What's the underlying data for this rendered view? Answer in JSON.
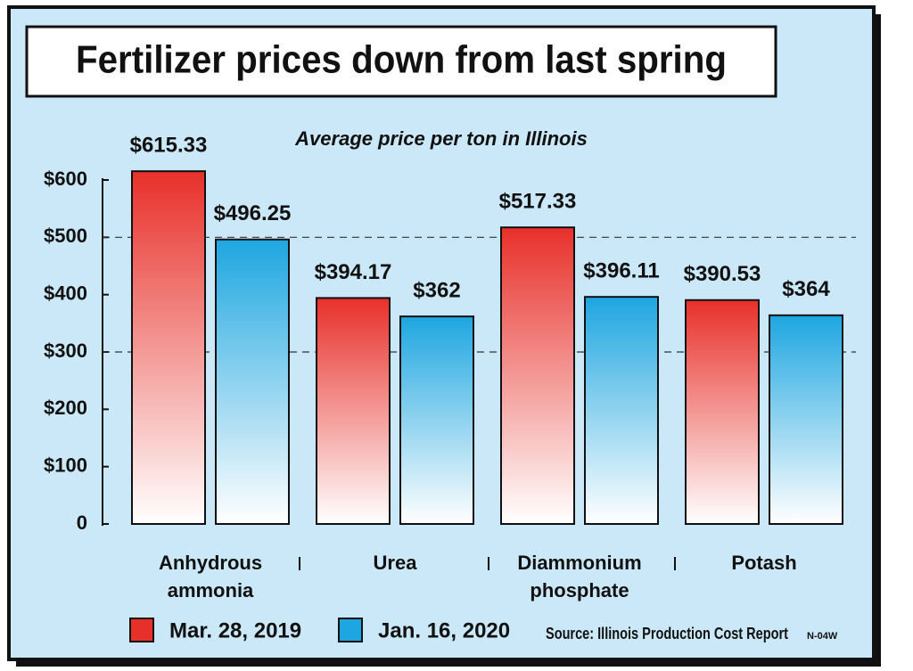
{
  "chart_data": {
    "type": "bar",
    "title": "Fertilizer prices down from last spring",
    "subtitle": "Average price per ton in Illinois",
    "categories": [
      "Anhydrous ammonia",
      "Urea",
      "Diammonium phosphate",
      "Potash"
    ],
    "series": [
      {
        "name": "Mar. 28, 2019",
        "color": "#e8302a",
        "values": [
          615.33,
          394.17,
          517.33,
          390.53
        ],
        "value_labels": [
          "$615.33",
          "$394.17",
          "$517.33",
          "$390.53"
        ]
      },
      {
        "name": "Jan. 16, 2020",
        "color": "#1ea6e0",
        "values": [
          496.25,
          362,
          396.11,
          364
        ],
        "value_labels": [
          "$496.25",
          "$362",
          "$396.11",
          "$364"
        ]
      }
    ],
    "ylim": [
      0,
      600
    ],
    "yticks": [
      0,
      {
        "value": 100,
        "label": "$100"
      },
      {
        "value": 200,
        "label": "$200"
      },
      {
        "value": 300,
        "label": "$300"
      },
      {
        "value": 400,
        "label": "$400"
      },
      {
        "value": 500,
        "label": "$500"
      },
      {
        "value": 600,
        "label": "$600"
      }
    ],
    "grid_lines": [
      300,
      500
    ],
    "source": "Source: Illinois Production Cost Report",
    "code": "N-04W"
  }
}
